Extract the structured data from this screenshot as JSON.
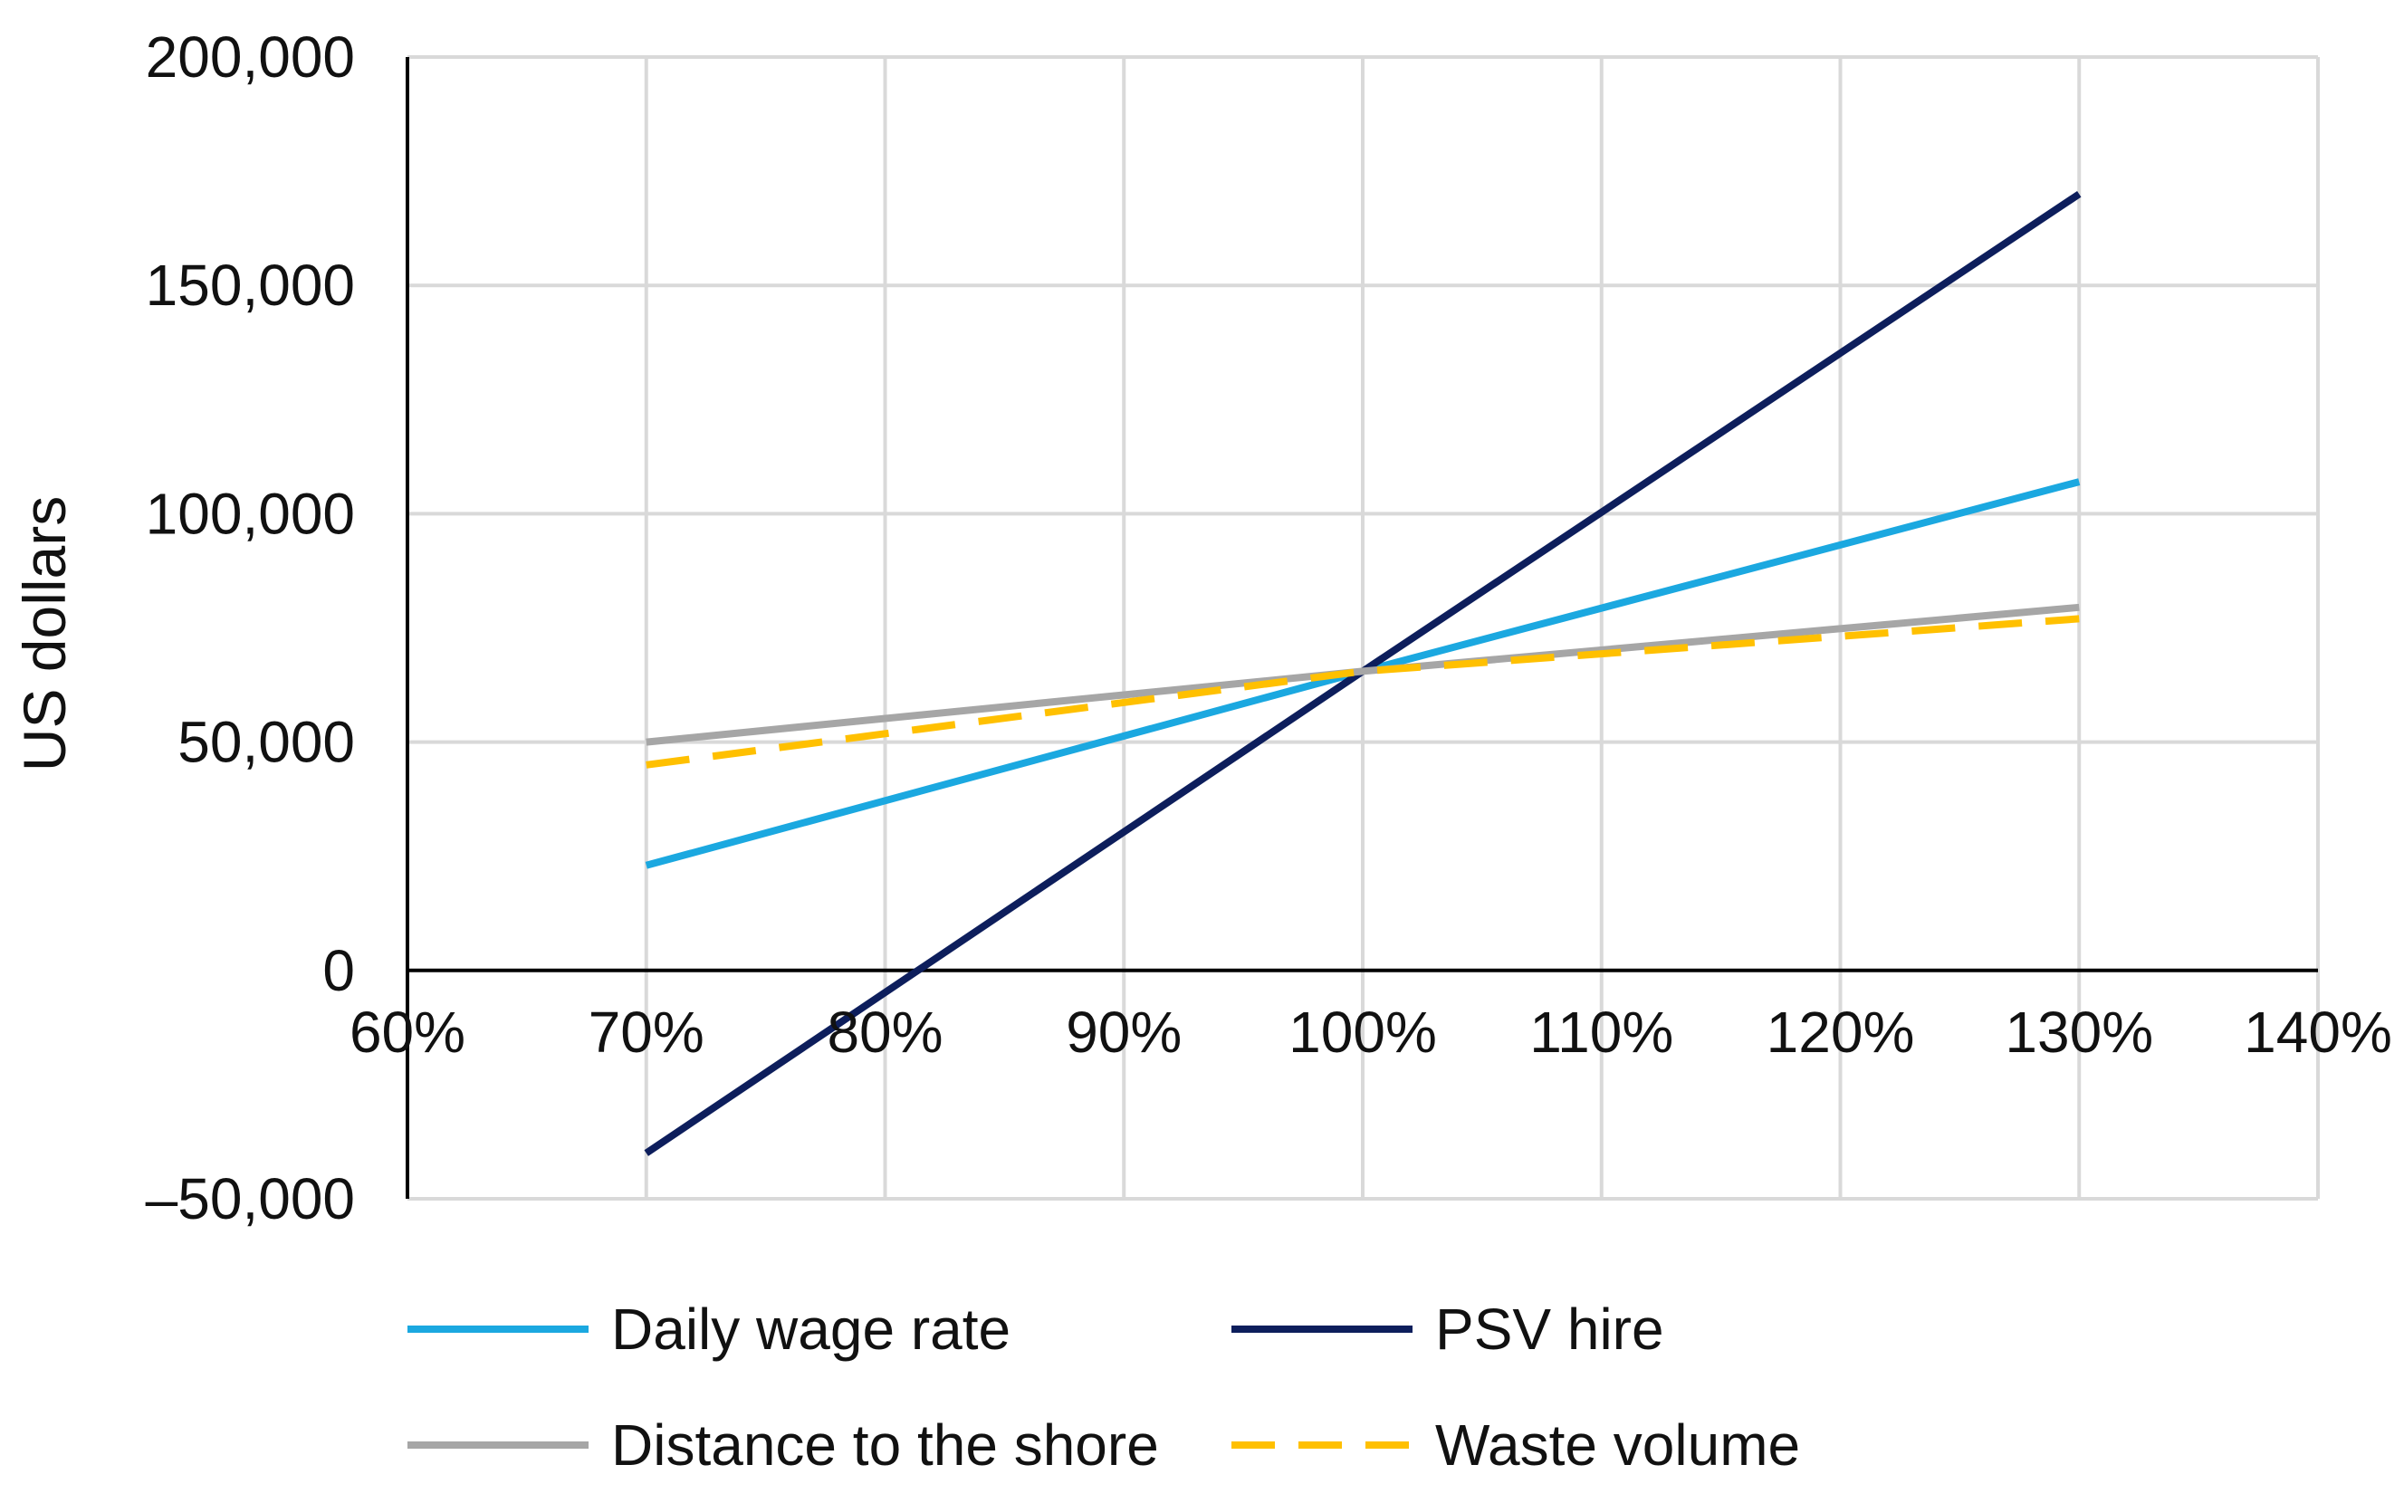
{
  "chart_data": {
    "type": "line",
    "title": "",
    "xlabel": "",
    "ylabel": "US dollars",
    "xlim": [
      0.6,
      1.4
    ],
    "ylim": [
      -50000,
      200000
    ],
    "x_ticks": [
      {
        "value": 0.6,
        "label": "60%"
      },
      {
        "value": 0.7,
        "label": "70%"
      },
      {
        "value": 0.8,
        "label": "80%"
      },
      {
        "value": 0.9,
        "label": "90%"
      },
      {
        "value": 1.0,
        "label": "100%"
      },
      {
        "value": 1.1,
        "label": "110%"
      },
      {
        "value": 1.2,
        "label": "120%"
      },
      {
        "value": 1.3,
        "label": "130%"
      },
      {
        "value": 1.4,
        "label": "140%"
      }
    ],
    "y_ticks": [
      {
        "value": 200000,
        "label": "200,000"
      },
      {
        "value": 150000,
        "label": "150,000"
      },
      {
        "value": 100000,
        "label": "100,000"
      },
      {
        "value": 50000,
        "label": "50,000"
      },
      {
        "value": 0,
        "label": "0"
      },
      {
        "value": -50000,
        "label": "–50,000"
      }
    ],
    "grid": true,
    "legend_position": "bottom",
    "x": [
      0.7,
      1.0,
      1.3
    ],
    "series": [
      {
        "name": "Daily wage rate",
        "values": [
          23000,
          65500,
          107000
        ],
        "color": "#1BA8E0",
        "dash": "solid"
      },
      {
        "name": "PSV hire",
        "values": [
          -40000,
          65500,
          170000
        ],
        "color": "#0D1E5C",
        "dash": "solid"
      },
      {
        "name": "Distance to the shore",
        "values": [
          50000,
          65500,
          79500
        ],
        "color": "#A6A6A6",
        "dash": "solid"
      },
      {
        "name": "Waste volume",
        "values": [
          45000,
          65500,
          77000
        ],
        "color": "#FFC000",
        "dash": "dashed"
      }
    ],
    "legend_order": [
      0,
      1,
      2,
      3
    ]
  }
}
